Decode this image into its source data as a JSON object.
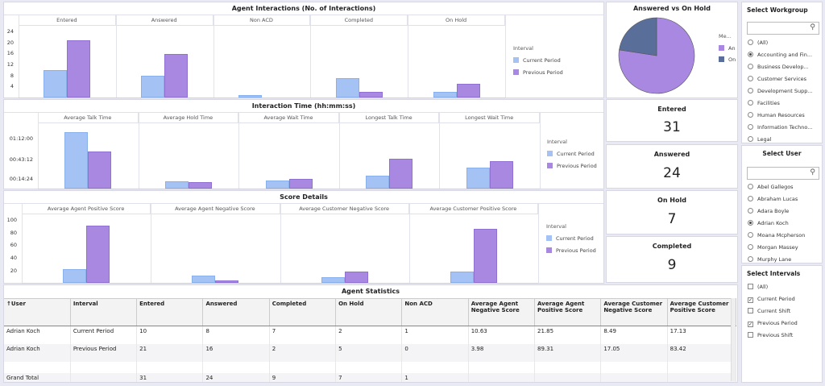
{
  "colors": {
    "current": "#a4c2f4",
    "previous": "#a888e0",
    "pie_answered": "#a888e0",
    "pie_onhold": "#5a6e9a"
  },
  "agent_interactions": {
    "title": "Agent Interactions (No. of Interactions)",
    "y_ticks": [
      "24",
      "20",
      "16",
      "12",
      "8",
      "4"
    ],
    "legend_title": "Interval",
    "legend": [
      "Current Period",
      "Previous Period"
    ],
    "chart_data": {
      "type": "bar",
      "categories": [
        "Entered",
        "Answered",
        "Non ACD",
        "Completed",
        "On Hold"
      ],
      "series": [
        {
          "name": "Current Period",
          "values": [
            10,
            8,
            1,
            7,
            2
          ]
        },
        {
          "name": "Previous Period",
          "values": [
            21,
            16,
            0,
            2,
            5
          ]
        }
      ],
      "ylim": [
        0,
        26
      ]
    }
  },
  "pie": {
    "title": "Answered vs On Hold",
    "legend_title": "Me...",
    "legend": [
      "An",
      "On"
    ],
    "chart_data": {
      "type": "pie",
      "categories": [
        "Answered",
        "On Hold"
      ],
      "values": [
        24,
        7
      ]
    }
  },
  "interaction_time": {
    "title": "Interaction Time (hh:mm:ss)",
    "y_ticks": [
      "01:12:00",
      "00:43:12",
      "00:14:24"
    ],
    "legend_title": "Interval",
    "legend": [
      "Current Period",
      "Previous Period"
    ],
    "chart_data": {
      "type": "bar",
      "categories": [
        "Average Talk Time",
        "Average Hold Time",
        "Average Wait Time",
        "Longest Talk Time",
        "Longest Wait Time"
      ],
      "series": [
        {
          "name": "Current Period",
          "values": [
            88,
            11,
            12,
            20,
            33
          ]
        },
        {
          "name": "Previous Period",
          "values": [
            57,
            10,
            15,
            46,
            43
          ]
        }
      ],
      "ylim": [
        0,
        100
      ]
    }
  },
  "score_details": {
    "title": "Score Details",
    "y_ticks": [
      "100",
      "80",
      "60",
      "40",
      "20"
    ],
    "legend_title": "Interval",
    "legend": [
      "Current Period",
      "Previous Period"
    ],
    "chart_data": {
      "type": "bar",
      "categories": [
        "Average Agent Positive Score",
        "Average Agent Negative Score",
        "Average Customer Negative Score",
        "Average Customer Positive Score"
      ],
      "series": [
        {
          "name": "Current Period",
          "values": [
            21.85,
            10.63,
            8.49,
            17.13
          ]
        },
        {
          "name": "Previous Period",
          "values": [
            89.31,
            3.98,
            17.05,
            83.42
          ]
        }
      ],
      "ylim": [
        0,
        105
      ]
    }
  },
  "kpis": [
    {
      "label": "Entered",
      "value": "31"
    },
    {
      "label": "Answered",
      "value": "24"
    },
    {
      "label": "On Hold",
      "value": "7"
    },
    {
      "label": "Completed",
      "value": "9"
    }
  ],
  "workgroup": {
    "title": "Select Workgroup",
    "items": [
      "(All)",
      "Accounting and Fin...",
      "Business Develop...",
      "Customer Services",
      "Development Supp...",
      "Facilities",
      "Human Resources",
      "Information Techno...",
      "Legal"
    ],
    "selected": 1
  },
  "user": {
    "title": "Select User",
    "items": [
      "Abel Gallegos",
      "Abraham Lucas",
      "Adara Boyle",
      "Adrian Koch",
      "Moana Mcpherson",
      "Morgan Massey",
      "Murphy Lane"
    ],
    "selected": 3
  },
  "intervals": {
    "title": "Select Intervals",
    "items": [
      "(All)",
      "Current Period",
      "Current Shift",
      "Previous Period",
      "Previous Shift"
    ],
    "checked": [
      false,
      true,
      false,
      true,
      false
    ]
  },
  "agent_stats": {
    "title": "Agent Statistics",
    "columns": [
      "↑User",
      "Interval",
      "Entered",
      "Answered",
      "Completed",
      "On Hold",
      "Non ACD",
      "Average Agent Negative Score",
      "Average Agent Positive Score",
      "Average Customer Negative Score",
      "Average Customer Positive Score"
    ],
    "rows": [
      [
        "Adrian Koch",
        "Current Period",
        "10",
        "8",
        "7",
        "2",
        "1",
        "10.63",
        "21.85",
        "8.49",
        "17.13"
      ],
      [
        "Adrian Koch",
        "Previous Period",
        "21",
        "16",
        "2",
        "5",
        "0",
        "3.98",
        "89.31",
        "17.05",
        "83.42"
      ]
    ],
    "total": [
      "Grand Total",
      "",
      "31",
      "24",
      "9",
      "7",
      "1",
      "",
      "",
      "",
      ""
    ]
  }
}
